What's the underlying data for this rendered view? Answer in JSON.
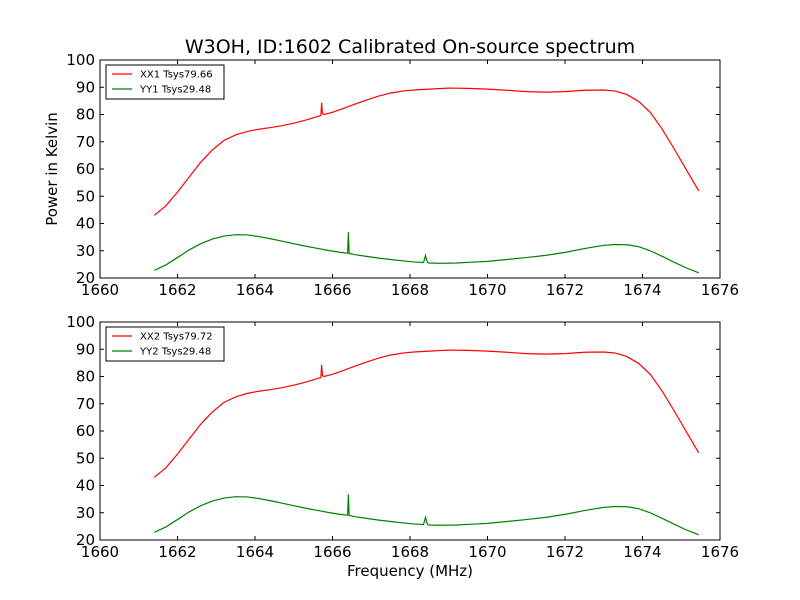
{
  "chart_data": [
    {
      "type": "line",
      "title": "W3OH, ID:1602 Calibrated On-source spectrum",
      "xlabel": "",
      "ylabel": "Power in Kelvin",
      "xlim": [
        1660,
        1676
      ],
      "ylim": [
        20,
        100
      ],
      "xticks": [
        "1660",
        "1662",
        "1664",
        "1666",
        "1668",
        "1670",
        "1672",
        "1674",
        "1676"
      ],
      "yticks": [
        "20",
        "30",
        "40",
        "50",
        "60",
        "70",
        "80",
        "90",
        "100"
      ],
      "legend_position": "top-left",
      "grid": false,
      "series": [
        {
          "name": "XX1 Tsys79.66",
          "color": "#ff0000",
          "x": [
            1661.4,
            1661.7,
            1662.0,
            1662.3,
            1662.6,
            1662.9,
            1663.2,
            1663.5,
            1663.8,
            1664.1,
            1664.4,
            1664.7,
            1665.0,
            1665.3,
            1665.6,
            1665.7,
            1665.72,
            1665.74,
            1665.78,
            1666.0,
            1666.3,
            1666.6,
            1666.9,
            1667.2,
            1667.5,
            1667.7,
            1667.8,
            1668.1,
            1668.5,
            1669.0,
            1669.5,
            1670.0,
            1670.5,
            1671.0,
            1671.5,
            1672.0,
            1672.5,
            1673.0,
            1673.3,
            1673.6,
            1673.9,
            1674.2,
            1674.5,
            1674.8,
            1675.1,
            1675.45
          ],
          "y": [
            43,
            46.5,
            51.5,
            57,
            62.5,
            67,
            70.5,
            72.5,
            73.8,
            74.6,
            75.2,
            75.9,
            76.8,
            77.9,
            79.2,
            79.6,
            84.3,
            80.3,
            80.0,
            80.8,
            82.3,
            83.9,
            85.4,
            86.8,
            87.9,
            88.3,
            88.6,
            89.0,
            89.3,
            89.7,
            89.6,
            89.3,
            88.9,
            88.4,
            88.2,
            88.4,
            88.9,
            89.0,
            88.6,
            87.3,
            84.8,
            80.8,
            74.8,
            67.8,
            60.5,
            52
          ]
        },
        {
          "name": "YY1 Tsys29.48",
          "color": "#008000",
          "x": [
            1661.4,
            1661.7,
            1662.0,
            1662.3,
            1662.6,
            1662.9,
            1663.2,
            1663.5,
            1663.8,
            1664.1,
            1664.4,
            1664.7,
            1665.0,
            1665.3,
            1665.6,
            1665.9,
            1666.2,
            1666.39,
            1666.41,
            1666.43,
            1666.6,
            1666.9,
            1667.2,
            1667.5,
            1667.8,
            1668.1,
            1668.35,
            1668.4,
            1668.43,
            1668.46,
            1668.5,
            1668.8,
            1669.2,
            1669.6,
            1670.0,
            1670.5,
            1671.0,
            1671.5,
            1672.0,
            1672.5,
            1673.0,
            1673.3,
            1673.6,
            1673.9,
            1674.2,
            1674.5,
            1674.8,
            1675.1,
            1675.45
          ],
          "y": [
            22.8,
            24.8,
            27.5,
            30.3,
            32.6,
            34.3,
            35.4,
            35.9,
            35.8,
            35.2,
            34.4,
            33.5,
            32.6,
            31.7,
            30.9,
            30.1,
            29.4,
            29.1,
            36.8,
            29.0,
            28.5,
            27.9,
            27.3,
            26.8,
            26.3,
            25.9,
            25.7,
            28.3,
            26.6,
            25.6,
            25.5,
            25.4,
            25.5,
            25.8,
            26.1,
            26.8,
            27.5,
            28.3,
            29.4,
            30.8,
            32.0,
            32.3,
            32.2,
            31.5,
            30.0,
            28.0,
            25.9,
            23.9,
            21.9
          ]
        }
      ]
    },
    {
      "type": "line",
      "title": "",
      "xlabel": "Frequency (MHz)",
      "ylabel": "",
      "xlim": [
        1660,
        1676
      ],
      "ylim": [
        20,
        100
      ],
      "xticks": [
        "1660",
        "1662",
        "1664",
        "1666",
        "1668",
        "1670",
        "1672",
        "1674",
        "1676"
      ],
      "yticks": [
        "20",
        "30",
        "40",
        "50",
        "60",
        "70",
        "80",
        "90",
        "100"
      ],
      "legend_position": "top-left",
      "grid": false,
      "series": [
        {
          "name": "XX2 Tsys79.72",
          "color": "#ff0000",
          "x": [
            1661.4,
            1661.7,
            1662.0,
            1662.3,
            1662.6,
            1662.9,
            1663.2,
            1663.5,
            1663.8,
            1664.1,
            1664.4,
            1664.7,
            1665.0,
            1665.3,
            1665.6,
            1665.7,
            1665.72,
            1665.74,
            1665.78,
            1666.0,
            1666.3,
            1666.6,
            1666.9,
            1667.2,
            1667.5,
            1667.7,
            1667.8,
            1668.1,
            1668.5,
            1669.0,
            1669.5,
            1670.0,
            1670.5,
            1671.0,
            1671.5,
            1672.0,
            1672.5,
            1673.0,
            1673.3,
            1673.6,
            1673.9,
            1674.2,
            1674.5,
            1674.8,
            1675.1,
            1675.45
          ],
          "y": [
            43,
            46.5,
            51.5,
            57,
            62.5,
            67,
            70.5,
            72.5,
            73.8,
            74.6,
            75.2,
            75.9,
            76.8,
            77.9,
            79.2,
            79.6,
            84.3,
            80.3,
            80.0,
            80.8,
            82.3,
            83.9,
            85.4,
            86.8,
            87.9,
            88.3,
            88.6,
            89.0,
            89.3,
            89.7,
            89.6,
            89.3,
            88.9,
            88.4,
            88.2,
            88.4,
            88.9,
            89.0,
            88.6,
            87.3,
            84.8,
            80.8,
            74.8,
            67.8,
            60.5,
            52
          ]
        },
        {
          "name": "YY2 Tsys29.48",
          "color": "#008000",
          "x": [
            1661.4,
            1661.7,
            1662.0,
            1662.3,
            1662.6,
            1662.9,
            1663.2,
            1663.5,
            1663.8,
            1664.1,
            1664.4,
            1664.7,
            1665.0,
            1665.3,
            1665.6,
            1665.9,
            1666.2,
            1666.39,
            1666.41,
            1666.43,
            1666.6,
            1666.9,
            1667.2,
            1667.5,
            1667.8,
            1668.1,
            1668.35,
            1668.4,
            1668.43,
            1668.46,
            1668.5,
            1668.8,
            1669.2,
            1669.6,
            1670.0,
            1670.5,
            1671.0,
            1671.5,
            1672.0,
            1672.5,
            1673.0,
            1673.3,
            1673.6,
            1673.9,
            1674.2,
            1674.5,
            1674.8,
            1675.1,
            1675.45
          ],
          "y": [
            22.8,
            24.8,
            27.5,
            30.3,
            32.6,
            34.3,
            35.4,
            35.9,
            35.8,
            35.2,
            34.4,
            33.5,
            32.6,
            31.7,
            30.9,
            30.1,
            29.4,
            29.1,
            36.8,
            29.0,
            28.5,
            27.9,
            27.3,
            26.8,
            26.3,
            25.9,
            25.7,
            28.3,
            26.6,
            25.6,
            25.5,
            25.4,
            25.5,
            25.8,
            26.1,
            26.8,
            27.5,
            28.3,
            29.4,
            30.8,
            32.0,
            32.3,
            32.2,
            31.5,
            30.0,
            28.0,
            25.9,
            23.9,
            21.9
          ]
        }
      ]
    }
  ]
}
